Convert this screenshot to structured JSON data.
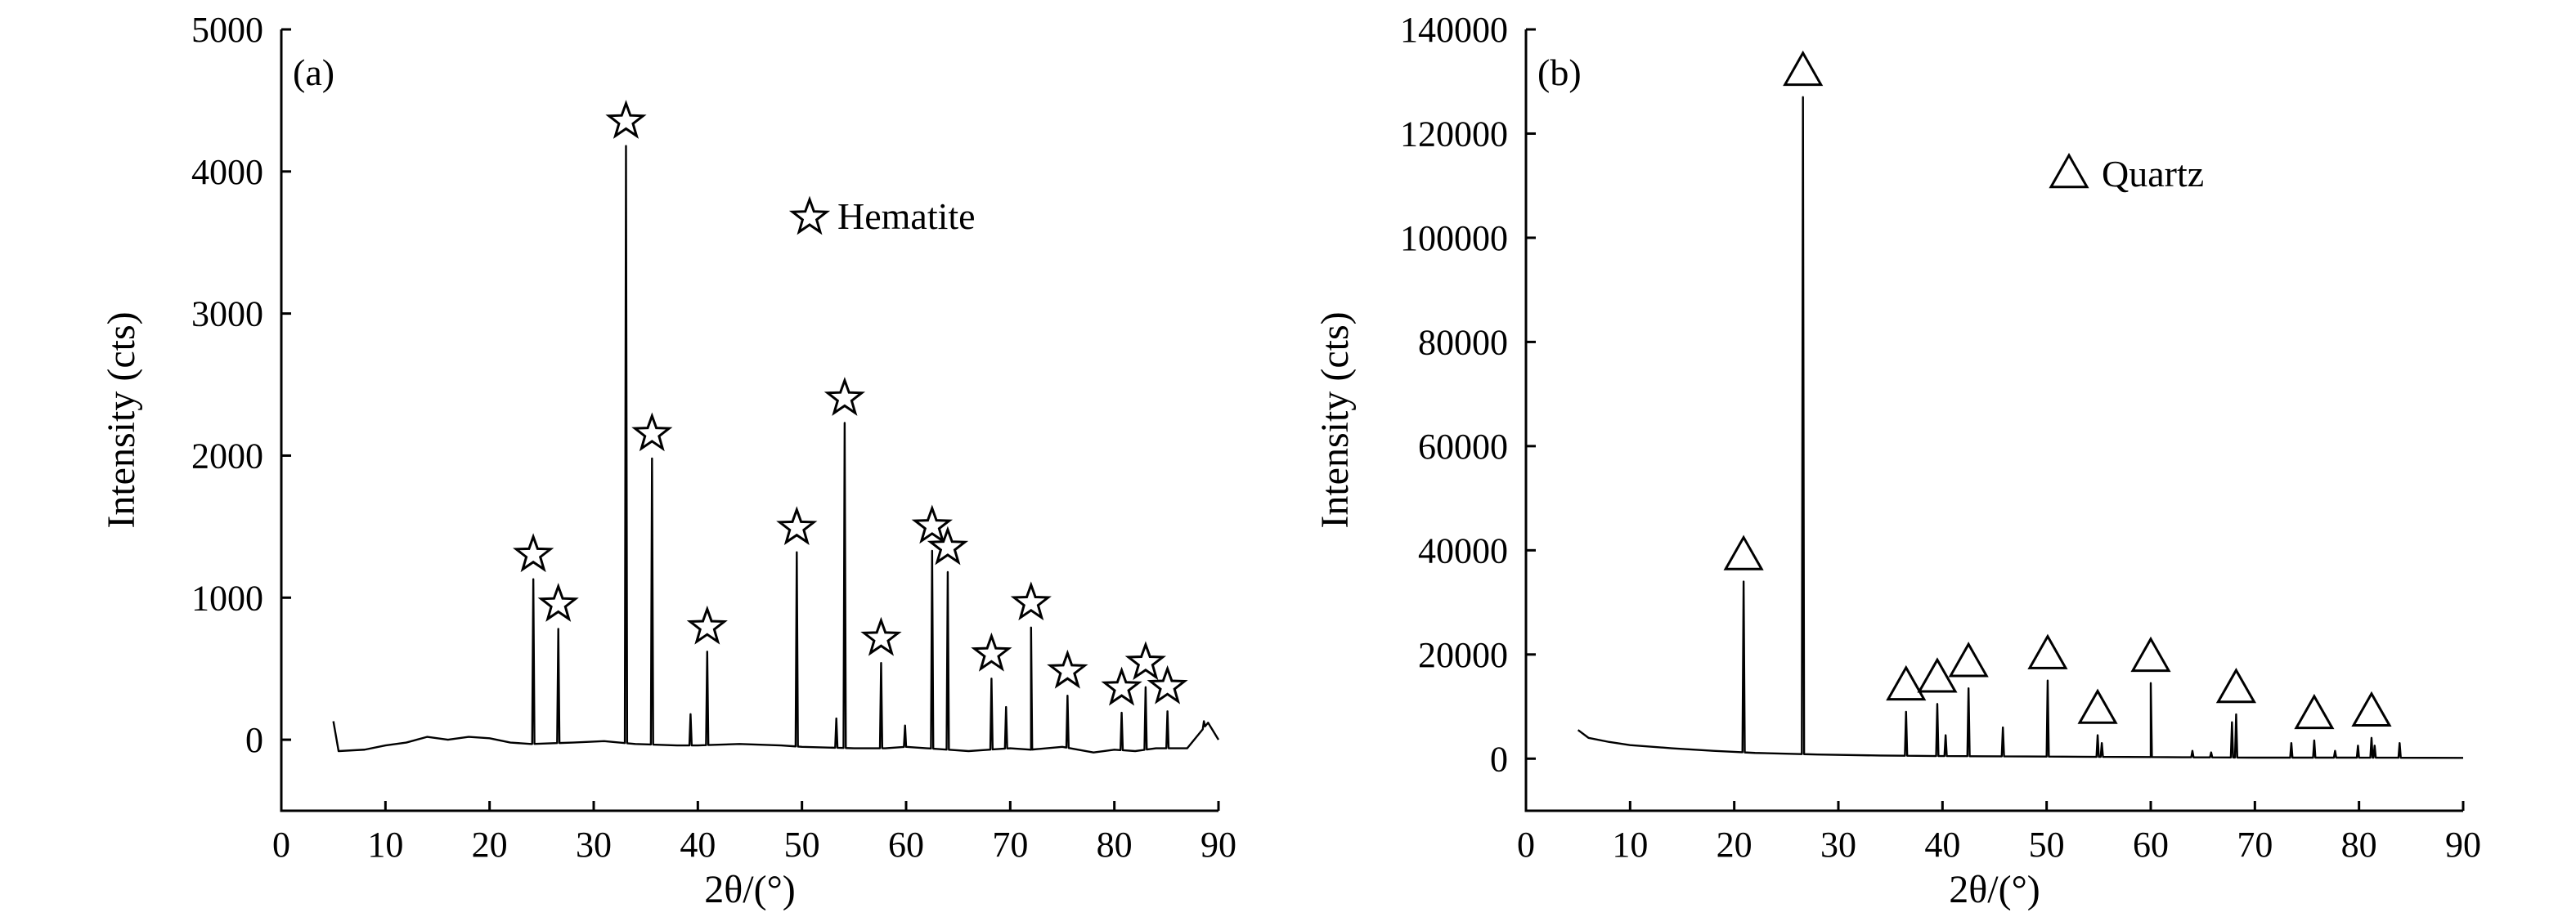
{
  "chart_data": [
    {
      "type": "line",
      "panel_label": "(a)",
      "xlabel": "2θ/(°)",
      "ylabel": "Intensity (cts)",
      "xlim": [
        0,
        90
      ],
      "ylim": [
        -500,
        5000
      ],
      "xticks": [
        0,
        10,
        20,
        30,
        40,
        50,
        60,
        70,
        80,
        90
      ],
      "yticks": [
        0,
        1000,
        2000,
        3000,
        4000,
        5000
      ],
      "xtick_labels": [
        "0",
        "10",
        "20",
        "30",
        "40",
        "50",
        "60",
        "70",
        "80",
        "90"
      ],
      "ytick_labels": [
        "0",
        "1000",
        "2000",
        "3000",
        "4000",
        "5000"
      ],
      "legend": {
        "label": "Hematite",
        "marker": "star",
        "placement": "upper-middle"
      },
      "baseline": [
        [
          5,
          130
        ],
        [
          5.5,
          -80
        ],
        [
          8,
          -70
        ],
        [
          10,
          -40
        ],
        [
          12,
          -20
        ],
        [
          14,
          20
        ],
        [
          16,
          0
        ],
        [
          18,
          20
        ],
        [
          20,
          10
        ],
        [
          22,
          -20
        ],
        [
          24,
          -30
        ],
        [
          28,
          -20
        ],
        [
          31,
          -10
        ],
        [
          34,
          -30
        ],
        [
          38,
          -40
        ],
        [
          40,
          -40
        ],
        [
          44,
          -30
        ],
        [
          48,
          -40
        ],
        [
          50,
          -50
        ],
        [
          55,
          -60
        ],
        [
          58,
          -60
        ],
        [
          60,
          -50
        ],
        [
          62,
          -60
        ],
        [
          66,
          -80
        ],
        [
          70,
          -60
        ],
        [
          72,
          -70
        ],
        [
          75,
          -50
        ],
        [
          78,
          -90
        ],
        [
          80,
          -70
        ],
        [
          82,
          -80
        ],
        [
          84,
          -60
        ],
        [
          87,
          -60
        ],
        [
          89,
          120
        ],
        [
          90,
          0
        ]
      ],
      "peaks": [
        {
          "x": 24.2,
          "y": 1130,
          "marked": true
        },
        {
          "x": 26.6,
          "y": 780,
          "marked": true
        },
        {
          "x": 33.1,
          "y": 4180,
          "marked": true
        },
        {
          "x": 35.6,
          "y": 1980,
          "marked": true
        },
        {
          "x": 39.3,
          "y": 180,
          "marked": false
        },
        {
          "x": 40.9,
          "y": 620,
          "marked": true
        },
        {
          "x": 49.5,
          "y": 1320,
          "marked": true
        },
        {
          "x": 53.3,
          "y": 150,
          "marked": false
        },
        {
          "x": 54.1,
          "y": 2230,
          "marked": true
        },
        {
          "x": 57.6,
          "y": 540,
          "marked": true
        },
        {
          "x": 59.9,
          "y": 100,
          "marked": false
        },
        {
          "x": 62.5,
          "y": 1330,
          "marked": true
        },
        {
          "x": 64.0,
          "y": 1180,
          "marked": true
        },
        {
          "x": 68.2,
          "y": 430,
          "marked": true
        },
        {
          "x": 69.6,
          "y": 230,
          "marked": false
        },
        {
          "x": 72.0,
          "y": 790,
          "marked": true
        },
        {
          "x": 75.5,
          "y": 310,
          "marked": true
        },
        {
          "x": 80.7,
          "y": 190,
          "marked": true
        },
        {
          "x": 83.0,
          "y": 370,
          "marked": true
        },
        {
          "x": 85.1,
          "y": 200,
          "marked": true
        },
        {
          "x": 88.6,
          "y": 130,
          "marked": false
        }
      ]
    },
    {
      "type": "line",
      "panel_label": "(b)",
      "xlabel": "2θ/(°)",
      "ylabel": "Intensity (cts)",
      "xlim": [
        0,
        90
      ],
      "ylim": [
        -10000,
        140000
      ],
      "xticks": [
        0,
        10,
        20,
        30,
        40,
        50,
        60,
        70,
        80,
        90
      ],
      "yticks": [
        0,
        20000,
        40000,
        60000,
        80000,
        100000,
        120000,
        140000
      ],
      "xtick_labels": [
        "0",
        "10",
        "20",
        "30",
        "40",
        "50",
        "60",
        "70",
        "80",
        "90"
      ],
      "ytick_labels": [
        "0",
        "20000",
        "40000",
        "60000",
        "80000",
        "100000",
        "120000",
        "140000"
      ],
      "legend": {
        "label": "Quartz",
        "marker": "triangle",
        "placement": "upper-middle"
      },
      "baseline": [
        [
          5,
          5500
        ],
        [
          6,
          4000
        ],
        [
          8,
          3200
        ],
        [
          10,
          2600
        ],
        [
          14,
          2000
        ],
        [
          18,
          1500
        ],
        [
          22,
          1100
        ],
        [
          28,
          800
        ],
        [
          34,
          600
        ],
        [
          40,
          500
        ],
        [
          50,
          400
        ],
        [
          60,
          300
        ],
        [
          70,
          200
        ],
        [
          80,
          200
        ],
        [
          90,
          150
        ]
      ],
      "peaks": [
        {
          "x": 20.9,
          "y": 34000,
          "marked": true
        },
        {
          "x": 26.6,
          "y": 127000,
          "marked": true
        },
        {
          "x": 36.5,
          "y": 9000,
          "marked": true
        },
        {
          "x": 39.5,
          "y": 10500,
          "marked": true
        },
        {
          "x": 40.3,
          "y": 4500,
          "marked": false
        },
        {
          "x": 42.5,
          "y": 13500,
          "marked": true
        },
        {
          "x": 45.8,
          "y": 6000,
          "marked": false
        },
        {
          "x": 50.1,
          "y": 15000,
          "marked": true
        },
        {
          "x": 54.9,
          "y": 4500,
          "marked": true
        },
        {
          "x": 55.3,
          "y": 3000,
          "marked": false
        },
        {
          "x": 60.0,
          "y": 14500,
          "marked": true
        },
        {
          "x": 64.0,
          "y": 1500,
          "marked": false
        },
        {
          "x": 65.8,
          "y": 1200,
          "marked": false
        },
        {
          "x": 67.8,
          "y": 7000,
          "marked": false
        },
        {
          "x": 68.2,
          "y": 8500,
          "marked": true
        },
        {
          "x": 73.5,
          "y": 3000,
          "marked": false
        },
        {
          "x": 75.7,
          "y": 3500,
          "marked": true
        },
        {
          "x": 77.7,
          "y": 1500,
          "marked": false
        },
        {
          "x": 79.9,
          "y": 2500,
          "marked": false
        },
        {
          "x": 81.2,
          "y": 4000,
          "marked": true
        },
        {
          "x": 81.5,
          "y": 2500,
          "marked": false
        },
        {
          "x": 83.9,
          "y": 3000,
          "marked": false
        }
      ]
    }
  ]
}
